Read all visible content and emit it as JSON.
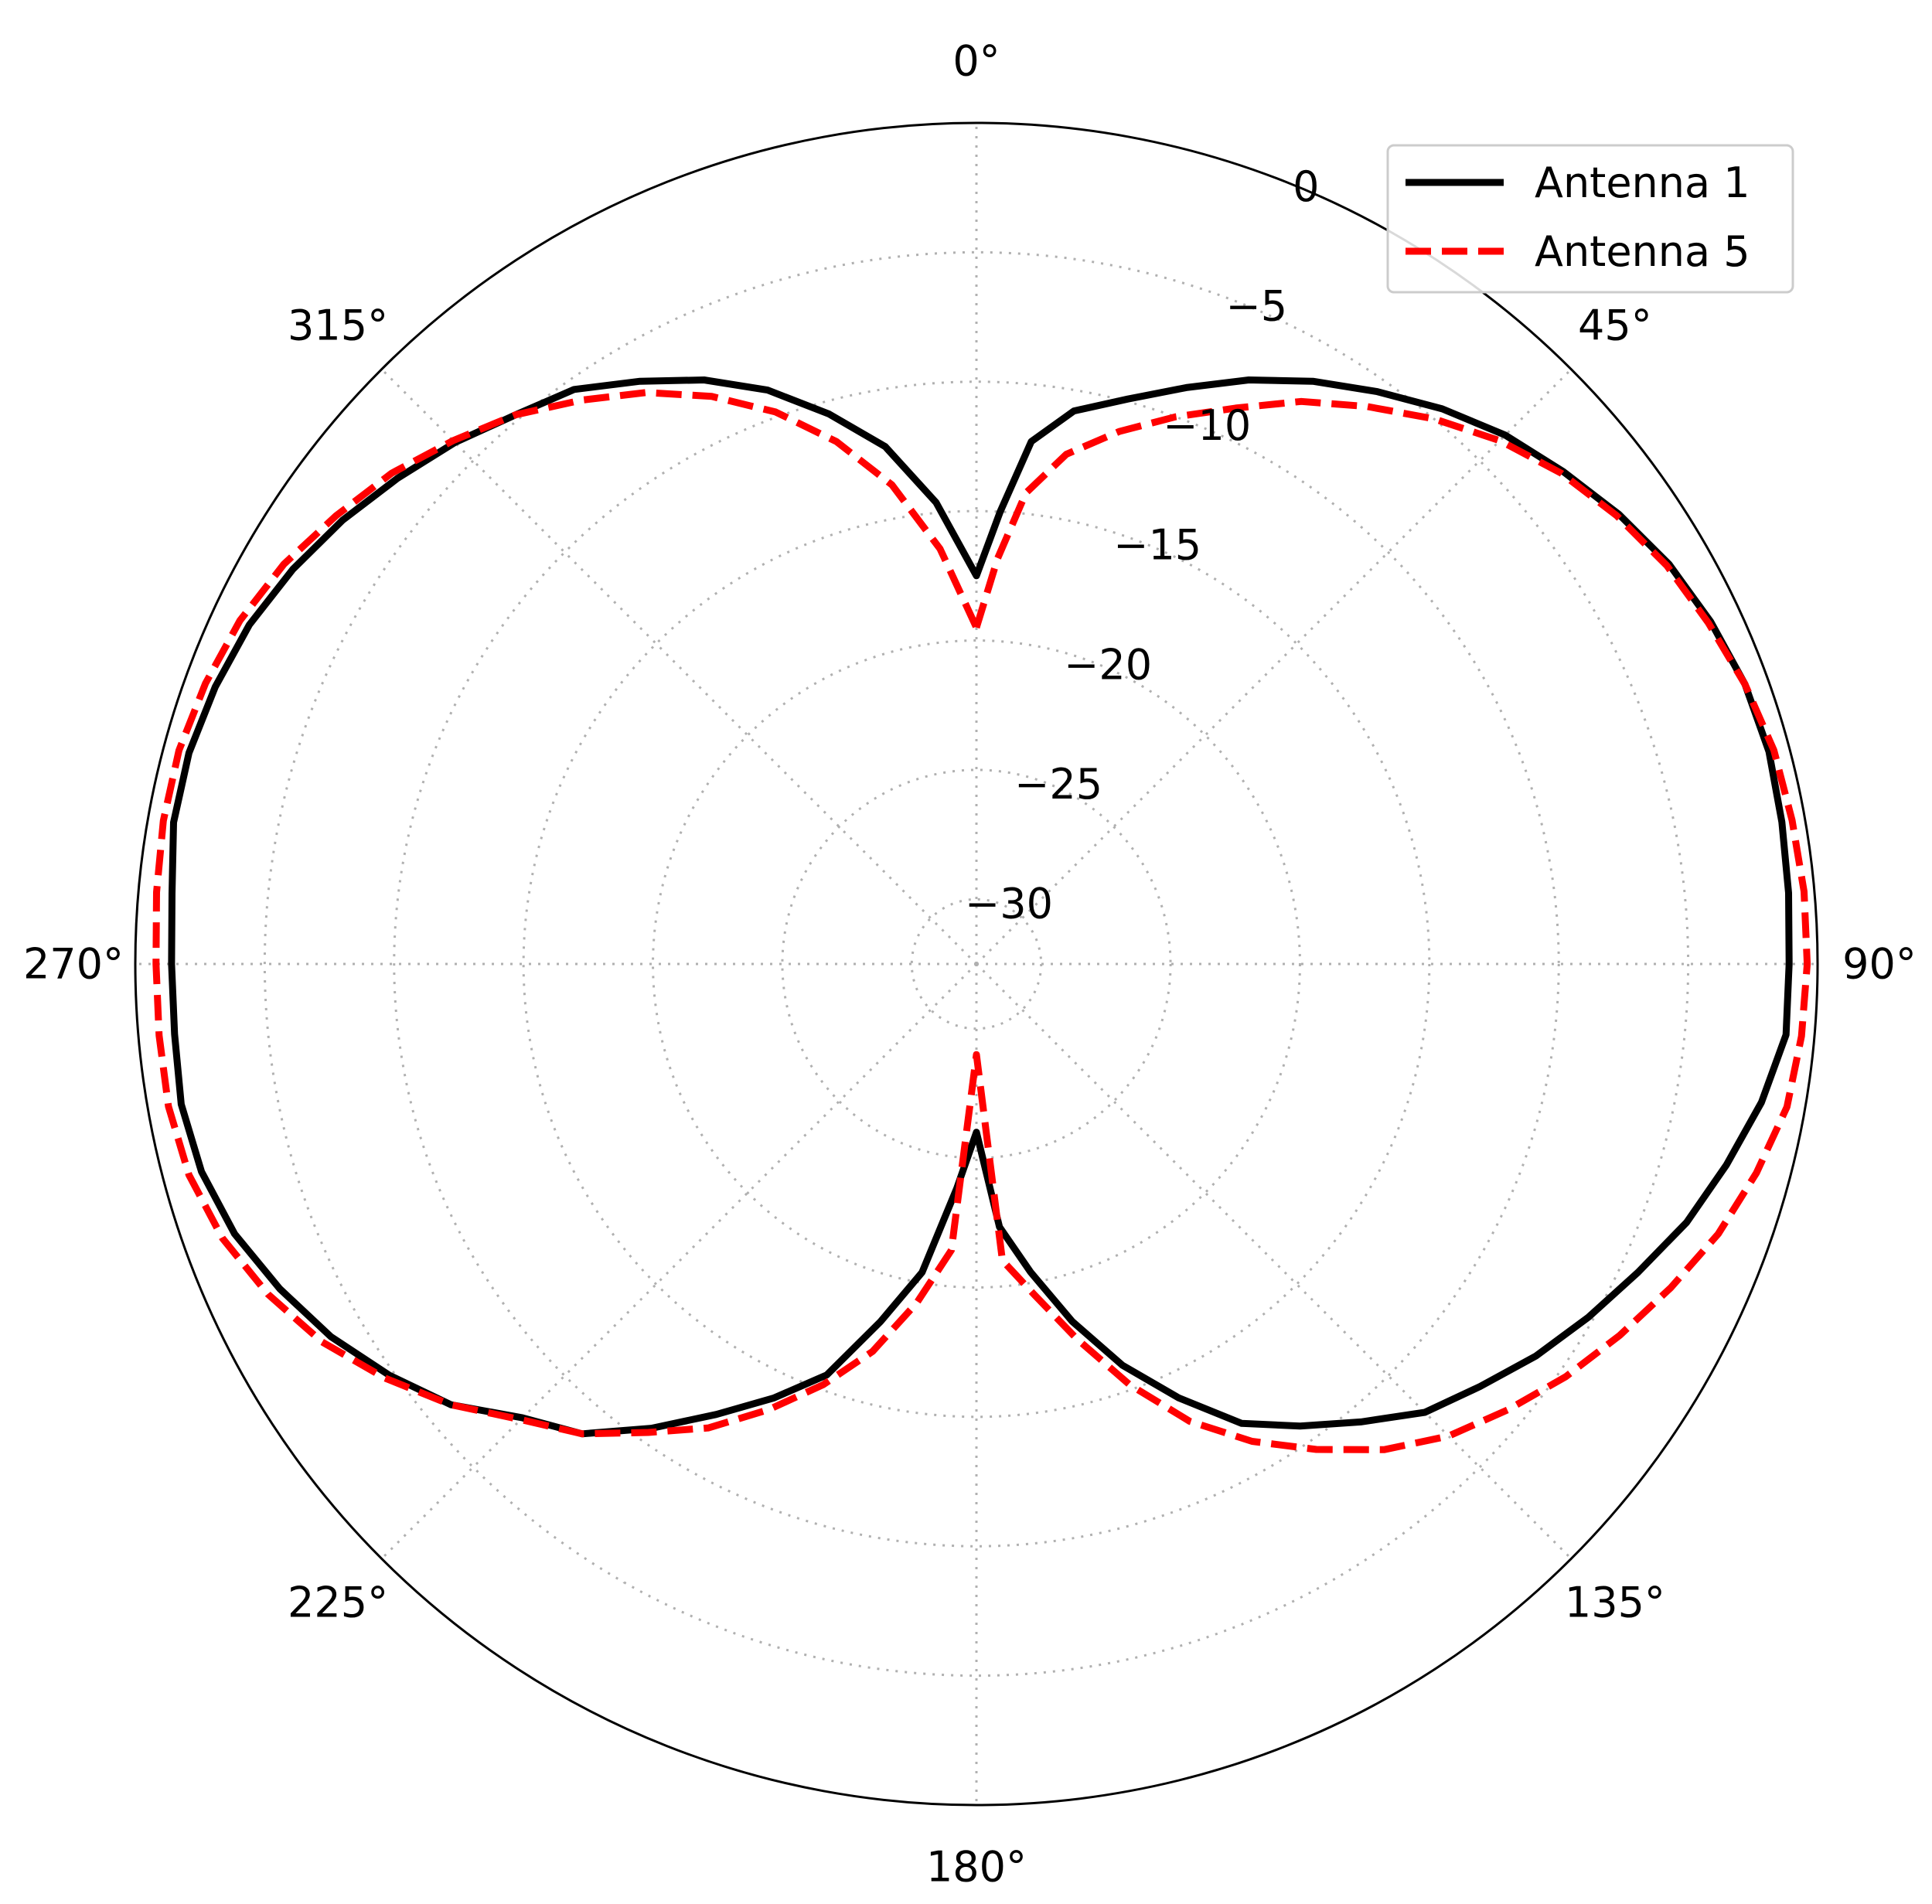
{
  "chart_data": {
    "type": "polar-line",
    "theta_direction": "clockwise",
    "theta_zero": "top",
    "theta_unit": "degrees",
    "r_unit": "dB",
    "rlim": [
      -32.5,
      0
    ],
    "r_ticks": [
      -30,
      -25,
      -20,
      -15,
      -10,
      -5,
      0
    ],
    "r_tick_labels": [
      "−30",
      "−25",
      "−20",
      "−15",
      "−10",
      "−5",
      "0"
    ],
    "theta_ticks": [
      0,
      45,
      90,
      135,
      180,
      225,
      270,
      315
    ],
    "theta_tick_labels": [
      "0°",
      "45°",
      "90°",
      "135°",
      "180°",
      "225°",
      "270°",
      "315°"
    ],
    "grid": true,
    "legend": {
      "placement": "top-right"
    },
    "series": [
      {
        "name": "Antenna 1",
        "color": "#000000",
        "line_style": "solid",
        "points": [
          [
            0,
            -17.5
          ],
          [
            3,
            -15.0
          ],
          [
            6,
            -12.2
          ],
          [
            10,
            -10.8
          ],
          [
            15,
            -9.9
          ],
          [
            20,
            -8.8
          ],
          [
            25,
            -7.6
          ],
          [
            30,
            -6.5
          ],
          [
            35,
            -5.5
          ],
          [
            40,
            -4.5
          ],
          [
            45,
            -3.6
          ],
          [
            50,
            -2.9
          ],
          [
            55,
            -2.2
          ],
          [
            60,
            -1.6
          ],
          [
            65,
            -1.2
          ],
          [
            70,
            -0.9
          ],
          [
            75,
            -0.8
          ],
          [
            80,
            -0.9
          ],
          [
            85,
            -1.0
          ],
          [
            90,
            -1.1
          ],
          [
            95,
            -1.1
          ],
          [
            100,
            -1.7
          ],
          [
            105,
            -2.5
          ],
          [
            110,
            -3.3
          ],
          [
            115,
            -4.3
          ],
          [
            120,
            -5.2
          ],
          [
            125,
            -6.1
          ],
          [
            130,
            -7.1
          ],
          [
            135,
            -8.0
          ],
          [
            140,
            -9.4
          ],
          [
            145,
            -10.7
          ],
          [
            150,
            -12.0
          ],
          [
            155,
            -14.0
          ],
          [
            160,
            -16.0
          ],
          [
            165,
            -18.2
          ],
          [
            170,
            -20.4
          ],
          [
            175,
            -22.3
          ],
          [
            180,
            -26.0
          ],
          [
            185,
            -23.8
          ],
          [
            190,
            -20.4
          ],
          [
            195,
            -18.2
          ],
          [
            200,
            -15.6
          ],
          [
            205,
            -14.0
          ],
          [
            210,
            -12.4
          ],
          [
            215,
            -10.6
          ],
          [
            220,
            -8.8
          ],
          [
            225,
            -7.7
          ],
          [
            230,
            -6.0
          ],
          [
            235,
            -4.8
          ],
          [
            240,
            -3.7
          ],
          [
            245,
            -2.8
          ],
          [
            250,
            -2.0
          ],
          [
            255,
            -1.5
          ],
          [
            260,
            -1.3
          ],
          [
            265,
            -1.4
          ],
          [
            270,
            -1.4
          ],
          [
            275,
            -1.3
          ],
          [
            280,
            -1.0
          ],
          [
            285,
            -1.0
          ],
          [
            290,
            -1.2
          ],
          [
            295,
            -1.5
          ],
          [
            300,
            -2.0
          ],
          [
            305,
            -2.6
          ],
          [
            310,
            -3.3
          ],
          [
            315,
            -4.0
          ],
          [
            320,
            -4.8
          ],
          [
            325,
            -5.4
          ],
          [
            330,
            -6.5
          ],
          [
            335,
            -7.6
          ],
          [
            340,
            -8.9
          ],
          [
            345,
            -10.5
          ],
          [
            350,
            -12.2
          ],
          [
            355,
            -14.6
          ],
          [
            360,
            -17.5
          ]
        ]
      },
      {
        "name": "Antenna 5",
        "color": "#ff0000",
        "line_style": "dashed",
        "points": [
          [
            0,
            -19.5
          ],
          [
            3,
            -16.8
          ],
          [
            6,
            -14.2
          ],
          [
            10,
            -12.5
          ],
          [
            15,
            -11.2
          ],
          [
            20,
            -10.0
          ],
          [
            25,
            -8.8
          ],
          [
            30,
            -7.4
          ],
          [
            35,
            -6.2
          ],
          [
            40,
            -5.0
          ],
          [
            45,
            -3.9
          ],
          [
            50,
            -3.0
          ],
          [
            55,
            -2.3
          ],
          [
            60,
            -1.7
          ],
          [
            65,
            -1.3
          ],
          [
            70,
            -0.9
          ],
          [
            75,
            -0.6
          ],
          [
            80,
            -0.5
          ],
          [
            85,
            -0.4
          ],
          [
            90,
            -0.4
          ],
          [
            95,
            -0.5
          ],
          [
            100,
            -0.7
          ],
          [
            105,
            -1.3
          ],
          [
            110,
            -2.0
          ],
          [
            115,
            -2.9
          ],
          [
            120,
            -3.8
          ],
          [
            125,
            -4.7
          ],
          [
            130,
            -5.7
          ],
          [
            135,
            -6.7
          ],
          [
            140,
            -8.0
          ],
          [
            145,
            -9.6
          ],
          [
            150,
            -11.2
          ],
          [
            155,
            -13.0
          ],
          [
            160,
            -15.2
          ],
          [
            165,
            -17.5
          ],
          [
            170,
            -19.5
          ],
          [
            175,
            -21.0
          ],
          [
            180,
            -29.0
          ],
          [
            185,
            -21.4
          ],
          [
            190,
            -19.2
          ],
          [
            195,
            -17.0
          ],
          [
            200,
            -15.2
          ],
          [
            205,
            -13.5
          ],
          [
            210,
            -11.8
          ],
          [
            215,
            -10.4
          ],
          [
            220,
            -8.8
          ],
          [
            225,
            -7.6
          ],
          [
            230,
            -6.0
          ],
          [
            235,
            -4.6
          ],
          [
            240,
            -3.3
          ],
          [
            245,
            -2.3
          ],
          [
            250,
            -1.5
          ],
          [
            255,
            -1.0
          ],
          [
            260,
            -0.8
          ],
          [
            265,
            -0.8
          ],
          [
            270,
            -0.8
          ],
          [
            275,
            -0.7
          ],
          [
            280,
            -0.6
          ],
          [
            285,
            -0.6
          ],
          [
            290,
            -0.8
          ],
          [
            295,
            -1.1
          ],
          [
            300,
            -1.6
          ],
          [
            305,
            -2.3
          ],
          [
            310,
            -3.0
          ],
          [
            315,
            -3.9
          ],
          [
            320,
            -4.8
          ],
          [
            325,
            -5.9
          ],
          [
            330,
            -7.0
          ],
          [
            335,
            -8.3
          ],
          [
            340,
            -9.8
          ],
          [
            345,
            -11.6
          ],
          [
            350,
            -13.7
          ],
          [
            355,
            -16.4
          ],
          [
            360,
            -19.5
          ]
        ]
      }
    ]
  }
}
